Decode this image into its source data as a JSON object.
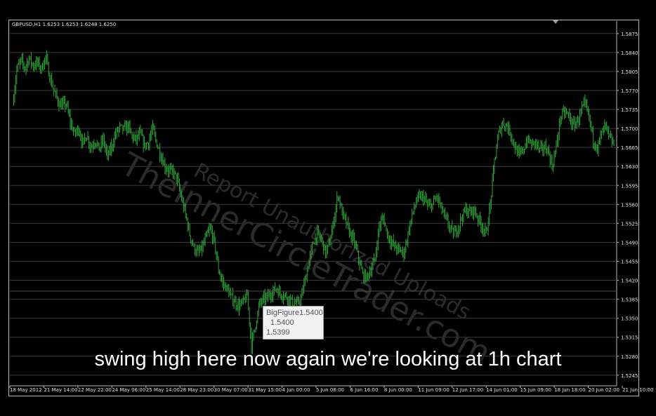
{
  "header": {
    "symbol_info": "GBPUSD,H1  1.6253 1.6253 1.6248 1.6250"
  },
  "subtitle": "swing high here now again we're looking at 1h chart",
  "tooltip": {
    "line1": "BigFigure1.5400",
    "line2": "1.5400",
    "line3": "1.5399"
  },
  "watermark": {
    "line1": "Report Unauthorized Uploads",
    "line2": "TheInnerCircleTrader.com"
  },
  "colors": {
    "background": "#000000",
    "candles": "#2fa33a",
    "grid": "#3a3a3a",
    "axis_text": "#e0e0e0",
    "frame": "#b8b8b8"
  },
  "chart_data": {
    "type": "line",
    "symbol": "GBPUSD",
    "timeframe": "H1",
    "ylim": [
      1.5228,
      1.5898
    ],
    "y_ticks": [
      "1.5875",
      "1.5840",
      "1.5805",
      "1.5770",
      "1.5735",
      "1.5700",
      "1.5665",
      "1.5630",
      "1.5595",
      "1.5560",
      "1.5525",
      "1.5490",
      "1.5455",
      "1.5420",
      "1.5385",
      "1.5350",
      "1.5315",
      "1.5280",
      "1.5245"
    ],
    "x_ticks": [
      "18 May 2012",
      "21 May 14:00",
      "22 May 22:00",
      "24 May 06:00",
      "25 May 14:00",
      "28 May 23:00",
      "30 May 07:00",
      "31 May 15:00",
      "4 Jun 00:00",
      "5 Jun 08:00",
      "6 Jun 16:00",
      "8 Jun 00:00",
      "11 Jun 09:00",
      "12 Jun 17:00",
      "14 Jun 01:00",
      "15 Jun 09:00",
      "18 Jun 18:00",
      "20 Jun 02:00",
      "21 Jun 10:00"
    ],
    "horizontal_level": 1.54,
    "grid": true,
    "close_path": [
      [
        0.0,
        1.5745
      ],
      [
        2.0,
        1.5808
      ],
      [
        4.0,
        1.5825
      ],
      [
        6.0,
        1.5812
      ],
      [
        8.0,
        1.583
      ],
      [
        10.0,
        1.5815
      ],
      [
        12.0,
        1.5822
      ],
      [
        14.0,
        1.581
      ],
      [
        16.0,
        1.5832
      ],
      [
        18.0,
        1.5795
      ],
      [
        20.0,
        1.577
      ],
      [
        23.0,
        1.5742
      ],
      [
        26.0,
        1.5745
      ],
      [
        28.0,
        1.5712
      ],
      [
        30.0,
        1.569
      ],
      [
        32.0,
        1.57
      ],
      [
        34.0,
        1.5672
      ],
      [
        36.0,
        1.5688
      ],
      [
        38.0,
        1.5665
      ],
      [
        40.0,
        1.5678
      ],
      [
        42.0,
        1.5662
      ],
      [
        44.0,
        1.568
      ],
      [
        46.0,
        1.5648
      ],
      [
        48.0,
        1.5665
      ],
      [
        50.0,
        1.569
      ],
      [
        52.0,
        1.5702
      ],
      [
        54.0,
        1.5698
      ],
      [
        56.0,
        1.5705
      ],
      [
        58.0,
        1.5685
      ],
      [
        60.0,
        1.568
      ],
      [
        62.0,
        1.569
      ],
      [
        64.0,
        1.5668
      ],
      [
        66.0,
        1.5675
      ],
      [
        68.0,
        1.57
      ],
      [
        70.0,
        1.5672
      ],
      [
        72.0,
        1.565
      ],
      [
        74.0,
        1.563
      ],
      [
        76.0,
        1.5622
      ],
      [
        78.0,
        1.562
      ],
      [
        80.0,
        1.5605
      ],
      [
        82.0,
        1.557
      ],
      [
        84.0,
        1.554
      ],
      [
        86.0,
        1.5505
      ],
      [
        88.0,
        1.548
      ],
      [
        90.0,
        1.547
      ],
      [
        92.0,
        1.5478
      ],
      [
        94.0,
        1.55
      ],
      [
        96.0,
        1.5515
      ],
      [
        98.0,
        1.549
      ],
      [
        100.0,
        1.544
      ],
      [
        102.0,
        1.5415
      ],
      [
        104.0,
        1.5405
      ],
      [
        106.0,
        1.539
      ],
      [
        108.0,
        1.538
      ],
      [
        110.0,
        1.5372
      ],
      [
        112.0,
        1.538
      ],
      [
        114.0,
        1.5392
      ],
      [
        116.0,
        1.53
      ],
      [
        118.0,
        1.534
      ],
      [
        120.0,
        1.5378
      ],
      [
        122.0,
        1.5385
      ],
      [
        124.0,
        1.539
      ],
      [
        126.0,
        1.5398
      ],
      [
        128.0,
        1.5405
      ],
      [
        130.0,
        1.5395
      ],
      [
        132.0,
        1.5392
      ],
      [
        134.0,
        1.5388
      ],
      [
        136.0,
        1.538
      ],
      [
        138.0,
        1.5375
      ],
      [
        140.0,
        1.5385
      ],
      [
        142.0,
        1.542
      ],
      [
        144.0,
        1.5455
      ],
      [
        146.0,
        1.549
      ],
      [
        148.0,
        1.5505
      ],
      [
        150.0,
        1.5495
      ],
      [
        152.0,
        1.547
      ],
      [
        154.0,
        1.549
      ],
      [
        156.0,
        1.553
      ],
      [
        158.0,
        1.558
      ],
      [
        160.0,
        1.5545
      ],
      [
        162.0,
        1.5525
      ],
      [
        164.0,
        1.5505
      ],
      [
        166.0,
        1.549
      ],
      [
        168.0,
        1.546
      ],
      [
        170.0,
        1.543
      ],
      [
        172.0,
        1.5425
      ],
      [
        174.0,
        1.544
      ],
      [
        176.0,
        1.546
      ],
      [
        178.0,
        1.552
      ],
      [
        180.0,
        1.5535
      ],
      [
        182.0,
        1.5505
      ],
      [
        184.0,
        1.549
      ],
      [
        186.0,
        1.548
      ],
      [
        188.0,
        1.5475
      ],
      [
        190.0,
        1.547
      ],
      [
        192.0,
        1.5505
      ],
      [
        194.0,
        1.554
      ],
      [
        196.0,
        1.5565
      ],
      [
        198.0,
        1.5575
      ],
      [
        200.0,
        1.557
      ],
      [
        202.0,
        1.5555
      ],
      [
        204.0,
        1.556
      ],
      [
        206.0,
        1.5575
      ],
      [
        208.0,
        1.5555
      ],
      [
        210.0,
        1.5535
      ],
      [
        212.0,
        1.552
      ],
      [
        214.0,
        1.5505
      ],
      [
        216.0,
        1.5515
      ],
      [
        218.0,
        1.5535
      ],
      [
        220.0,
        1.555
      ],
      [
        222.0,
        1.5545
      ],
      [
        224.0,
        1.555
      ],
      [
        226.0,
        1.5535
      ],
      [
        228.0,
        1.552
      ],
      [
        230.0,
        1.5505
      ],
      [
        232.0,
        1.556
      ],
      [
        234.0,
        1.564
      ],
      [
        236.0,
        1.569
      ],
      [
        238.0,
        1.571
      ],
      [
        240.0,
        1.5705
      ],
      [
        242.0,
        1.569
      ],
      [
        244.0,
        1.5665
      ],
      [
        246.0,
        1.565
      ],
      [
        248.0,
        1.566
      ],
      [
        250.0,
        1.568
      ],
      [
        252.0,
        1.567
      ],
      [
        254.0,
        1.5675
      ],
      [
        256.0,
        1.566
      ],
      [
        258.0,
        1.5665
      ],
      [
        260.0,
        1.566
      ],
      [
        262.0,
        1.563
      ],
      [
        264.0,
        1.5665
      ],
      [
        266.0,
        1.572
      ],
      [
        268.0,
        1.573
      ],
      [
        270.0,
        1.5725
      ],
      [
        272.0,
        1.5705
      ],
      [
        274.0,
        1.5712
      ],
      [
        276.0,
        1.573
      ],
      [
        278.0,
        1.5745
      ],
      [
        280.0,
        1.572
      ],
      [
        282.0,
        1.568
      ],
      [
        284.0,
        1.5665
      ],
      [
        286.0,
        1.569
      ],
      [
        288.0,
        1.5705
      ],
      [
        290.0,
        1.568
      ],
      [
        292.0,
        1.567
      ]
    ]
  }
}
